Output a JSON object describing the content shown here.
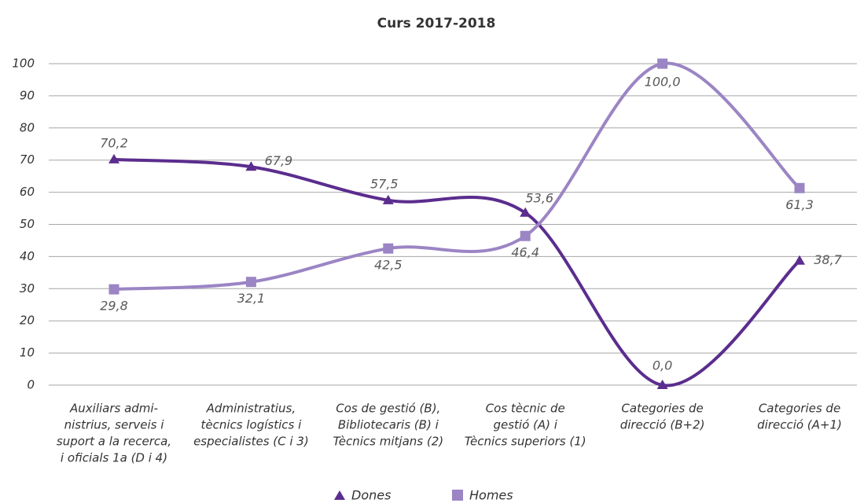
{
  "chart_data": {
    "type": "line",
    "title": "Curs 2017-2018",
    "categories": [
      [
        "Auxiliars admi-",
        "nistrius, serveis i",
        "suport a la recerca,",
        "i oficials 1a (D i 4)"
      ],
      [
        "Administratius,",
        "tècnics logístics i",
        "especialistes (C i 3)"
      ],
      [
        "Cos de gestió (B),",
        "Bibliotecaris (B) i",
        "Tècnics mitjans (2)"
      ],
      [
        "Cos tècnic de",
        "gestió (A) i",
        "Tècnics superiors (1)"
      ],
      [
        "Categories de",
        "direcció (B+2)"
      ],
      [
        "Categories de",
        "direcció (A+1)"
      ]
    ],
    "series": [
      {
        "name": "Dones",
        "color": "#5b2d8e",
        "marker": "triangle",
        "values": [
          70.2,
          67.9,
          57.5,
          53.6,
          0.0,
          38.7
        ],
        "value_labels": [
          "70,2",
          "67,9",
          "57,5",
          "53,6",
          "0,0",
          "38,7"
        ]
      },
      {
        "name": "Homes",
        "color": "#9b85c4",
        "marker": "square",
        "values": [
          29.8,
          32.1,
          42.5,
          46.4,
          100,
          61.3
        ],
        "value_labels": [
          "29,8",
          "32,1",
          "42,5",
          "46,4",
          "100,0",
          "61,3"
        ]
      }
    ],
    "ylim": [
      0,
      100
    ],
    "yticks": [
      0,
      10,
      20,
      30,
      40,
      50,
      60,
      70,
      80,
      90,
      100
    ],
    "grid": true,
    "legend": "bottom",
    "smooth": true
  }
}
